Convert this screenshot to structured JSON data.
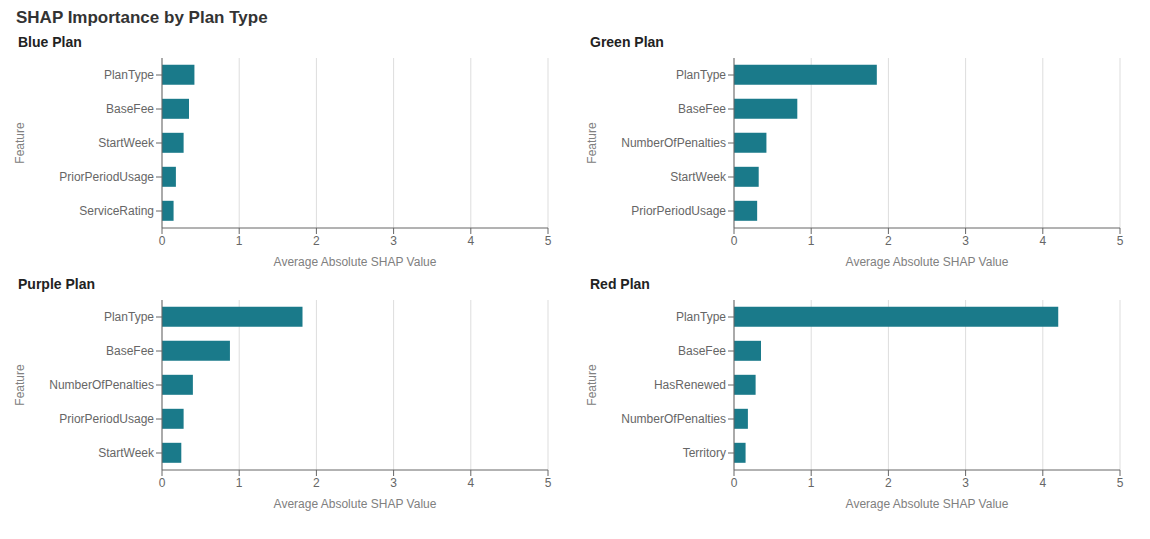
{
  "title": "SHAP Importance by Plan Type",
  "chart_data": [
    {
      "type": "bar",
      "orientation": "horizontal",
      "title": "Blue Plan",
      "categories": [
        "PlanType",
        "BaseFee",
        "StartWeek",
        "PriorPeriodUsage",
        "ServiceRating"
      ],
      "values": [
        0.42,
        0.35,
        0.28,
        0.18,
        0.15
      ],
      "color": "#1a7a8a",
      "xlabel": "Average Absolute SHAP Value",
      "ylabel": "Feature",
      "xlim": [
        0,
        5
      ],
      "xticks": [
        0,
        1,
        2,
        3,
        4,
        5
      ],
      "grid": true
    },
    {
      "type": "bar",
      "orientation": "horizontal",
      "title": "Green Plan",
      "categories": [
        "PlanType",
        "BaseFee",
        "NumberOfPenalties",
        "StartWeek",
        "PriorPeriodUsage"
      ],
      "values": [
        1.85,
        0.82,
        0.42,
        0.32,
        0.3
      ],
      "color": "#1a7a8a",
      "xlabel": "Average Absolute SHAP Value",
      "ylabel": "Feature",
      "xlim": [
        0,
        5
      ],
      "xticks": [
        0,
        1,
        2,
        3,
        4,
        5
      ],
      "grid": true
    },
    {
      "type": "bar",
      "orientation": "horizontal",
      "title": "Purple Plan",
      "categories": [
        "PlanType",
        "BaseFee",
        "NumberOfPenalties",
        "PriorPeriodUsage",
        "StartWeek"
      ],
      "values": [
        1.82,
        0.88,
        0.4,
        0.28,
        0.25
      ],
      "color": "#1a7a8a",
      "xlabel": "Average Absolute SHAP Value",
      "ylabel": "Feature",
      "xlim": [
        0,
        5
      ],
      "xticks": [
        0,
        1,
        2,
        3,
        4,
        5
      ],
      "grid": true
    },
    {
      "type": "bar",
      "orientation": "horizontal",
      "title": "Red Plan",
      "categories": [
        "PlanType",
        "BaseFee",
        "HasRenewed",
        "NumberOfPenalties",
        "Territory"
      ],
      "values": [
        4.2,
        0.35,
        0.28,
        0.18,
        0.15
      ],
      "color": "#1a7a8a",
      "xlabel": "Average Absolute SHAP Value",
      "ylabel": "Feature",
      "xlim": [
        0,
        5
      ],
      "xticks": [
        0,
        1,
        2,
        3,
        4,
        5
      ],
      "grid": true
    }
  ]
}
